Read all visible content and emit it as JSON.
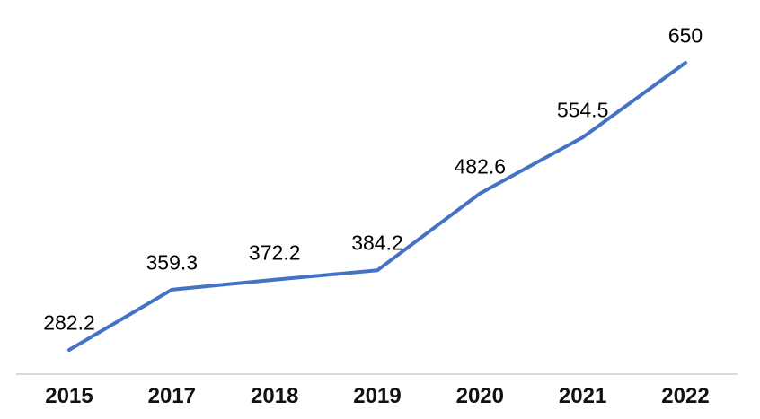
{
  "chart_data": {
    "type": "line",
    "title": "",
    "xlabel": "",
    "ylabel": "",
    "categories": [
      "2015",
      "2017",
      "2018",
      "2019",
      "2020",
      "2021",
      "2022"
    ],
    "values": [
      282.2,
      359.3,
      372.2,
      384.2,
      482.6,
      554.5,
      650
    ],
    "data_labels": [
      "282.2",
      "359.3",
      "372.2",
      "384.2",
      "482.6",
      "554.5",
      "650"
    ],
    "series_name": "",
    "line_color": "#4472C4",
    "axis_line_color": "#d9d9d9",
    "label_color": "#000000",
    "grid": false,
    "legend": false,
    "data_labels_shown": true,
    "y_axis_shown": false
  }
}
